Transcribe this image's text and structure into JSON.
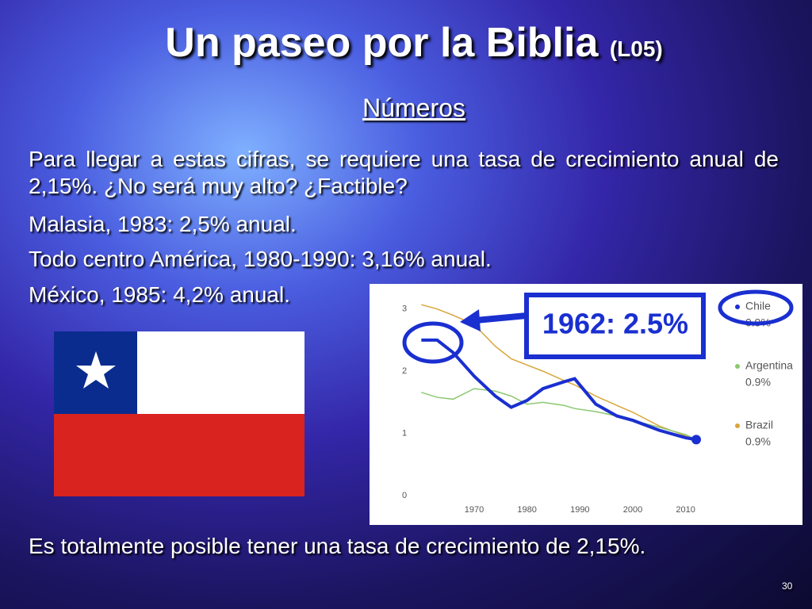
{
  "title": "Un paseo por la Biblia",
  "title_suffix": "(L05)",
  "subtitle": "Números",
  "paragraphs": [
    "Para llegar a estas cifras, se requiere una tasa de crecimiento anual de 2,15%. ¿No será muy alto? ¿Factible?",
    "Malasia, 1983:  2,5% anual.",
    "Todo centro América, 1980-1990:  3,16% anual.",
    "México, 1985: 4,2% anual."
  ],
  "closing": "Es totalmente posible tener una tasa de crecimiento de 2,15%.",
  "page_number": "30",
  "chart_data": {
    "type": "line",
    "annotation": "1962: 2.5%",
    "x": [
      1960,
      1963,
      1966,
      1970,
      1974,
      1977,
      1980,
      1983,
      1987,
      1989,
      1993,
      1997,
      2000,
      2005,
      2010,
      2012
    ],
    "series": [
      {
        "name": "Chile",
        "legend_value": "0.9%",
        "color": "#1a2fd0",
        "values": [
          2.5,
          2.5,
          2.3,
          1.92,
          1.6,
          1.42,
          1.53,
          1.72,
          1.83,
          1.88,
          1.47,
          1.28,
          1.21,
          1.05,
          0.93,
          0.9
        ]
      },
      {
        "name": "Argentina",
        "legend_value": "0.9%",
        "color": "#8cc870",
        "values": [
          1.66,
          1.58,
          1.55,
          1.72,
          1.68,
          1.6,
          1.47,
          1.5,
          1.45,
          1.4,
          1.35,
          1.28,
          1.21,
          1.1,
          0.98,
          0.9
        ]
      },
      {
        "name": "Brazil",
        "legend_value": "0.9%",
        "color": "#d9a53a",
        "values": [
          3.07,
          3.0,
          2.9,
          2.75,
          2.4,
          2.2,
          2.1,
          2.0,
          1.85,
          1.78,
          1.6,
          1.45,
          1.34,
          1.12,
          0.96,
          0.9
        ]
      }
    ],
    "xlim": [
      1958,
      2015
    ],
    "xticks": [
      1970,
      1980,
      1990,
      2000,
      2010
    ],
    "ylim": [
      0,
      3.2
    ],
    "yticks": [
      0,
      1,
      2,
      3
    ]
  }
}
